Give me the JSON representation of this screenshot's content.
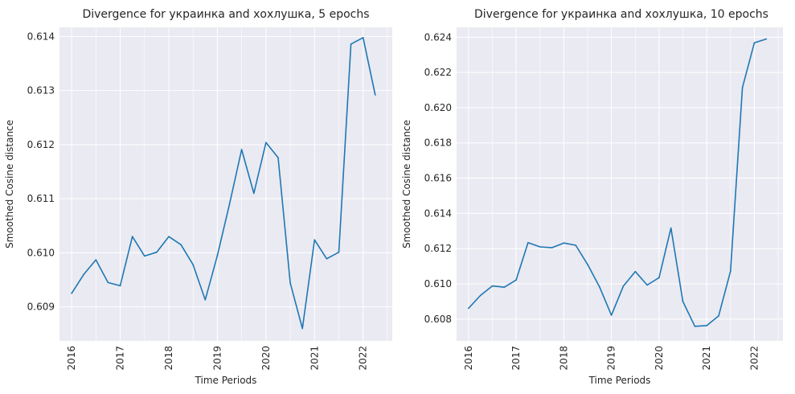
{
  "chart_data": [
    {
      "type": "line",
      "title": "Divergence for украинка and хохлушка, 5 epochs",
      "xlabel": "Time Periods",
      "ylabel": "Smoothed Cosine distance",
      "x_ticks": [
        "2016",
        "2017",
        "2018",
        "2019",
        "2020",
        "2021",
        "2022"
      ],
      "y_ticks": [
        "0.609",
        "0.610",
        "0.611",
        "0.612",
        "0.613",
        "0.614"
      ],
      "xlim": [
        2015.75,
        2022.6
      ],
      "ylim": [
        0.60837,
        0.61417
      ],
      "grid": true,
      "color": "#1f77b4",
      "series": [
        {
          "x": [
            2016.0,
            2016.25,
            2016.5,
            2016.75,
            2017.0,
            2017.25,
            2017.5,
            2017.75,
            2018.0,
            2018.25,
            2018.5,
            2018.75,
            2019.0,
            2019.25,
            2019.5,
            2019.75,
            2020.0,
            2020.25,
            2020.5,
            2020.75,
            2021.0,
            2021.25,
            2021.5,
            2021.75,
            2022.0,
            2022.25
          ],
          "y": [
            0.60925,
            0.6096,
            0.60987,
            0.60945,
            0.60939,
            0.6103,
            0.60994,
            0.61001,
            0.6103,
            0.61015,
            0.60978,
            0.60913,
            0.60995,
            0.6109,
            0.61191,
            0.6111,
            0.61204,
            0.61176,
            0.60944,
            0.6086,
            0.61024,
            0.60989,
            0.61001,
            0.61386,
            0.61398,
            0.61292
          ]
        }
      ]
    },
    {
      "type": "line",
      "title": "Divergence for украинка and хохлушка, 10 epochs",
      "xlabel": "Time Periods",
      "ylabel": "Smoothed Cosine distance",
      "x_ticks": [
        "2016",
        "2017",
        "2018",
        "2019",
        "2020",
        "2021",
        "2022"
      ],
      "y_ticks": [
        "0.608",
        "0.610",
        "0.612",
        "0.614",
        "0.616",
        "0.618",
        "0.620",
        "0.622",
        "0.624"
      ],
      "xlim": [
        2015.75,
        2022.6
      ],
      "ylim": [
        0.60676,
        0.62456
      ],
      "grid": true,
      "color": "#1f77b4",
      "series": [
        {
          "x": [
            2016.0,
            2016.25,
            2016.5,
            2016.75,
            2017.0,
            2017.25,
            2017.5,
            2017.75,
            2018.0,
            2018.25,
            2018.5,
            2018.75,
            2019.0,
            2019.25,
            2019.5,
            2019.75,
            2020.0,
            2020.25,
            2020.5,
            2020.75,
            2021.0,
            2021.25,
            2021.5,
            2021.75,
            2022.0,
            2022.25
          ],
          "y": [
            0.60861,
            0.60934,
            0.60988,
            0.60981,
            0.61022,
            0.61234,
            0.6121,
            0.61205,
            0.61232,
            0.61219,
            0.6111,
            0.60983,
            0.60822,
            0.60987,
            0.6107,
            0.60993,
            0.61035,
            0.61317,
            0.609,
            0.60759,
            0.60763,
            0.60818,
            0.61072,
            0.62114,
            0.62368,
            0.6239
          ]
        }
      ]
    }
  ]
}
